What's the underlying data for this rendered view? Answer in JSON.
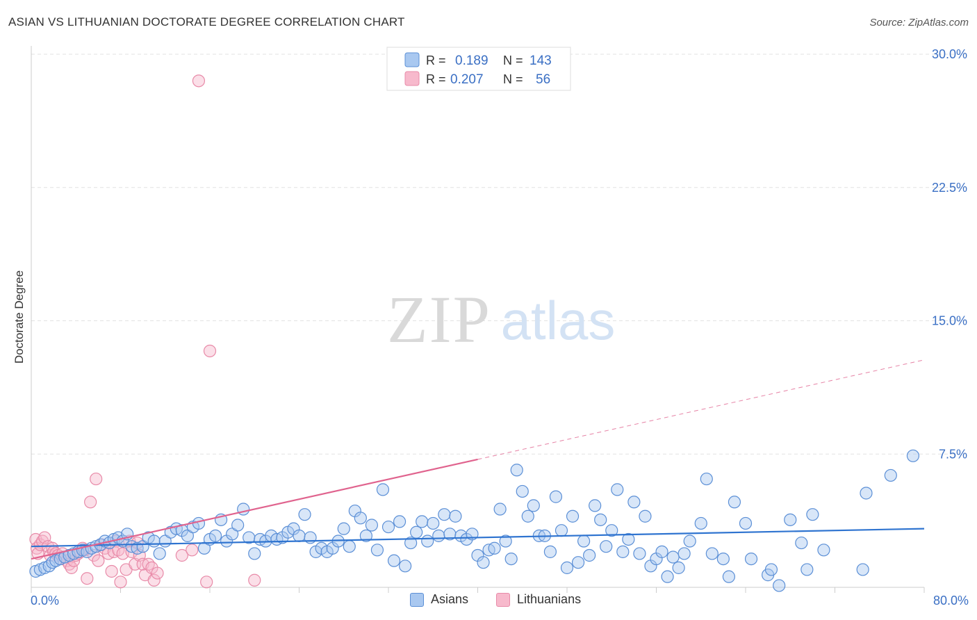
{
  "title": "ASIAN VS LITHUANIAN DOCTORATE DEGREE CORRELATION CHART",
  "source": "Source: ZipAtlas.com",
  "watermark": {
    "zip": "ZIP",
    "atlas": "atlas"
  },
  "colors": {
    "asian_fill": "#a9c8f0",
    "asian_stroke": "#5b8fd6",
    "asian_line": "#2f74d0",
    "lith_fill": "#f7b9cc",
    "lith_stroke": "#e88aa8",
    "lith_line": "#e0638e",
    "value_text": "#3a6fc4",
    "grid": "#e2e2e2"
  },
  "legend_top": {
    "asian": {
      "r_label": "R =",
      "r_value": "0.189",
      "n_label": "N =",
      "n_value": "143"
    },
    "lith": {
      "r_label": "R =",
      "r_value": "0.207",
      "n_label": "N =",
      "n_value": "56"
    }
  },
  "legend_bottom": {
    "asian": "Asians",
    "lith": "Lithuanians"
  },
  "chart_data": {
    "type": "scatter",
    "title": "ASIAN VS LITHUANIAN DOCTORATE DEGREE CORRELATION CHART",
    "xlabel": "",
    "ylabel": "Doctorate Degree",
    "xlim": [
      0,
      80
    ],
    "ylim": [
      0,
      30
    ],
    "x_tick_labels": [
      "0.0%",
      "80.0%"
    ],
    "y_ticks": [
      7.5,
      15.0,
      22.5,
      30.0
    ],
    "y_tick_labels": [
      "7.5%",
      "15.0%",
      "22.5%",
      "30.0%"
    ],
    "series": [
      {
        "name": "Asians",
        "R": 0.189,
        "N": 143,
        "trend": {
          "x": [
            0,
            80
          ],
          "y": [
            2.3,
            3.3
          ]
        },
        "points": [
          [
            0.4,
            0.9
          ],
          [
            0.8,
            1.0
          ],
          [
            1.2,
            1.1
          ],
          [
            1.6,
            1.2
          ],
          [
            1.9,
            1.4
          ],
          [
            2.2,
            1.5
          ],
          [
            2.6,
            1.6
          ],
          [
            3.0,
            1.7
          ],
          [
            3.4,
            1.8
          ],
          [
            3.8,
            1.9
          ],
          [
            4.2,
            2.0
          ],
          [
            4.6,
            2.1
          ],
          [
            5.0,
            2.0
          ],
          [
            5.4,
            2.2
          ],
          [
            5.8,
            2.3
          ],
          [
            6.2,
            2.4
          ],
          [
            6.6,
            2.6
          ],
          [
            7.0,
            2.5
          ],
          [
            7.4,
            2.7
          ],
          [
            7.8,
            2.8
          ],
          [
            8.2,
            2.6
          ],
          [
            8.6,
            3.0
          ],
          [
            9.0,
            2.3
          ],
          [
            9.5,
            2.2
          ],
          [
            10.0,
            2.3
          ],
          [
            10.5,
            2.8
          ],
          [
            11.0,
            2.6
          ],
          [
            11.5,
            1.9
          ],
          [
            12.0,
            2.6
          ],
          [
            12.5,
            3.1
          ],
          [
            13.0,
            3.3
          ],
          [
            13.5,
            3.2
          ],
          [
            14.0,
            2.9
          ],
          [
            14.5,
            3.4
          ],
          [
            15.0,
            3.6
          ],
          [
            15.5,
            2.2
          ],
          [
            16.0,
            2.7
          ],
          [
            16.5,
            2.9
          ],
          [
            17.0,
            3.8
          ],
          [
            17.5,
            2.6
          ],
          [
            18.0,
            3.0
          ],
          [
            18.5,
            3.5
          ],
          [
            19.0,
            4.4
          ],
          [
            19.5,
            2.8
          ],
          [
            20.0,
            1.9
          ],
          [
            20.5,
            2.7
          ],
          [
            21.0,
            2.6
          ],
          [
            21.5,
            2.9
          ],
          [
            22.0,
            2.7
          ],
          [
            22.5,
            2.8
          ],
          [
            23.0,
            3.1
          ],
          [
            23.5,
            3.3
          ],
          [
            24.0,
            2.9
          ],
          [
            24.5,
            4.1
          ],
          [
            25.0,
            2.8
          ],
          [
            25.5,
            2.0
          ],
          [
            26.0,
            2.2
          ],
          [
            26.5,
            2.0
          ],
          [
            27.0,
            2.2
          ],
          [
            27.5,
            2.6
          ],
          [
            28.0,
            3.3
          ],
          [
            28.5,
            2.3
          ],
          [
            29.0,
            4.3
          ],
          [
            29.5,
            3.9
          ],
          [
            30.0,
            2.9
          ],
          [
            30.5,
            3.5
          ],
          [
            31.0,
            2.1
          ],
          [
            31.5,
            5.5
          ],
          [
            32.0,
            3.4
          ],
          [
            32.5,
            1.5
          ],
          [
            33.0,
            3.7
          ],
          [
            33.5,
            1.2
          ],
          [
            34.0,
            2.5
          ],
          [
            34.5,
            3.1
          ],
          [
            35.0,
            3.7
          ],
          [
            35.5,
            2.6
          ],
          [
            36.0,
            3.6
          ],
          [
            36.5,
            2.9
          ],
          [
            37.0,
            4.1
          ],
          [
            37.5,
            3.0
          ],
          [
            38.0,
            4.0
          ],
          [
            38.5,
            2.9
          ],
          [
            39.0,
            2.7
          ],
          [
            39.5,
            3.0
          ],
          [
            40.0,
            1.8
          ],
          [
            40.5,
            1.4
          ],
          [
            41.0,
            2.1
          ],
          [
            41.5,
            2.2
          ],
          [
            42.0,
            4.4
          ],
          [
            42.5,
            2.6
          ],
          [
            43.0,
            1.6
          ],
          [
            43.5,
            6.6
          ],
          [
            44.0,
            5.4
          ],
          [
            44.5,
            4.0
          ],
          [
            45.0,
            4.6
          ],
          [
            45.5,
            2.9
          ],
          [
            46.0,
            2.9
          ],
          [
            46.5,
            2.0
          ],
          [
            47.0,
            5.1
          ],
          [
            47.5,
            3.2
          ],
          [
            48.0,
            1.1
          ],
          [
            48.5,
            4.0
          ],
          [
            49.0,
            1.4
          ],
          [
            49.5,
            2.6
          ],
          [
            50.0,
            1.8
          ],
          [
            50.5,
            4.6
          ],
          [
            51.0,
            3.8
          ],
          [
            51.5,
            2.3
          ],
          [
            52.0,
            3.2
          ],
          [
            52.5,
            5.5
          ],
          [
            53.0,
            2.0
          ],
          [
            53.5,
            2.7
          ],
          [
            54.0,
            4.8
          ],
          [
            54.5,
            1.9
          ],
          [
            55.0,
            4.0
          ],
          [
            55.5,
            1.2
          ],
          [
            56.0,
            1.6
          ],
          [
            56.5,
            2.0
          ],
          [
            57.0,
            0.6
          ],
          [
            57.5,
            1.7
          ],
          [
            58.0,
            1.1
          ],
          [
            58.5,
            1.9
          ],
          [
            59.0,
            2.6
          ],
          [
            60.0,
            3.6
          ],
          [
            60.5,
            6.1
          ],
          [
            61.0,
            1.9
          ],
          [
            62.0,
            1.6
          ],
          [
            62.5,
            0.6
          ],
          [
            63.0,
            4.8
          ],
          [
            64.0,
            3.6
          ],
          [
            64.5,
            1.6
          ],
          [
            66.0,
            0.7
          ],
          [
            66.3,
            1.0
          ],
          [
            67.0,
            0.1
          ],
          [
            68.0,
            3.8
          ],
          [
            69.0,
            2.5
          ],
          [
            69.5,
            1.0
          ],
          [
            70.0,
            4.1
          ],
          [
            71.0,
            2.1
          ],
          [
            74.5,
            1.0
          ],
          [
            74.8,
            5.3
          ],
          [
            77.0,
            6.3
          ],
          [
            79.0,
            7.4
          ]
        ]
      },
      {
        "name": "Lithuanians",
        "R": 0.207,
        "N": 56,
        "trend": {
          "x": [
            0,
            80
          ],
          "y": [
            1.6,
            12.8
          ]
        },
        "points": [
          [
            0.4,
            2.7
          ],
          [
            0.5,
            2.2
          ],
          [
            0.6,
            1.9
          ],
          [
            0.8,
            2.4
          ],
          [
            1.0,
            2.6
          ],
          [
            1.2,
            2.8
          ],
          [
            1.5,
            2.3
          ],
          [
            1.7,
            1.8
          ],
          [
            1.9,
            2.2
          ],
          [
            2.0,
            2.0
          ],
          [
            2.2,
            1.9
          ],
          [
            2.4,
            1.8
          ],
          [
            2.6,
            1.6
          ],
          [
            2.8,
            1.9
          ],
          [
            3.0,
            1.7
          ],
          [
            3.2,
            1.5
          ],
          [
            3.4,
            1.3
          ],
          [
            3.6,
            1.1
          ],
          [
            3.8,
            1.5
          ],
          [
            4.0,
            1.8
          ],
          [
            4.2,
            1.9
          ],
          [
            4.4,
            2.0
          ],
          [
            4.6,
            2.2
          ],
          [
            4.8,
            2.1
          ],
          [
            5.0,
            0.5
          ],
          [
            5.3,
            4.8
          ],
          [
            5.6,
            1.8
          ],
          [
            5.8,
            6.1
          ],
          [
            6.0,
            1.5
          ],
          [
            6.3,
            2.4
          ],
          [
            6.6,
            2.2
          ],
          [
            6.9,
            1.9
          ],
          [
            7.2,
            0.9
          ],
          [
            7.4,
            2.0
          ],
          [
            7.6,
            2.6
          ],
          [
            7.8,
            2.1
          ],
          [
            8.0,
            0.3
          ],
          [
            8.2,
            1.9
          ],
          [
            8.5,
            1.0
          ],
          [
            8.8,
            2.6
          ],
          [
            9.0,
            2.0
          ],
          [
            9.3,
            1.3
          ],
          [
            9.5,
            2.5
          ],
          [
            9.7,
            1.8
          ],
          [
            10.0,
            1.3
          ],
          [
            10.2,
            0.7
          ],
          [
            10.5,
            1.3
          ],
          [
            10.8,
            1.1
          ],
          [
            11.0,
            0.4
          ],
          [
            11.3,
            0.8
          ],
          [
            13.5,
            1.8
          ],
          [
            14.4,
            2.1
          ],
          [
            15.0,
            28.5
          ],
          [
            15.7,
            0.3
          ],
          [
            16.0,
            13.3
          ],
          [
            20.0,
            0.4
          ]
        ]
      }
    ]
  }
}
